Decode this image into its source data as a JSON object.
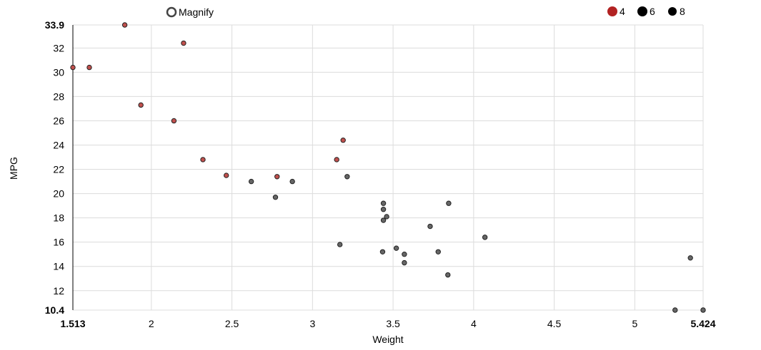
{
  "magnify": {
    "label": "Magnify",
    "checked": false
  },
  "chart_data": {
    "type": "scatter",
    "xlabel": "Weight",
    "ylabel": "MPG",
    "xlim": [
      1.513,
      5.424
    ],
    "ylim": [
      10.4,
      33.9
    ],
    "x_ticks": [
      2,
      2.5,
      3,
      3.5,
      4,
      4.5,
      5
    ],
    "x_tick_labels": [
      "2",
      "2.5",
      "3",
      "3.5",
      "4",
      "4.5",
      "5"
    ],
    "x_bound_labels": [
      "1.513",
      "5.424"
    ],
    "y_ticks": [
      12,
      14,
      16,
      18,
      20,
      22,
      24,
      26,
      28,
      30,
      32
    ],
    "y_tick_labels": [
      "12",
      "14",
      "16",
      "18",
      "20",
      "22",
      "24",
      "26",
      "28",
      "30",
      "32"
    ],
    "y_bound_labels": [
      "10.4",
      "33.9"
    ],
    "grid": true,
    "legend": {
      "placement": "top-right"
    },
    "series": [
      {
        "name": "4",
        "color": "#c0504d",
        "legend_color": "#b22222",
        "x": [
          2.32,
          3.19,
          3.15,
          2.2,
          1.615,
          1.835,
          2.465,
          1.935,
          2.14,
          1.513,
          2.78
        ],
        "y": [
          22.8,
          24.4,
          22.8,
          32.4,
          30.4,
          33.9,
          21.5,
          27.3,
          26.0,
          30.4,
          21.4
        ]
      },
      {
        "name": "6",
        "color": "#666666",
        "legend_color": "#000000",
        "x": [
          2.62,
          2.875,
          3.215,
          3.46,
          3.44,
          3.44,
          2.77
        ],
        "y": [
          21.0,
          21.0,
          21.4,
          18.1,
          19.2,
          17.8,
          19.7
        ]
      },
      {
        "name": "8",
        "color": "#666666",
        "legend_color": "#000000",
        "x": [
          3.44,
          3.57,
          4.07,
          3.73,
          3.78,
          5.25,
          5.424,
          5.345,
          3.52,
          3.435,
          3.84,
          3.845,
          3.17,
          3.57
        ],
        "y": [
          18.7,
          14.3,
          16.4,
          17.3,
          15.2,
          10.4,
          10.4,
          14.7,
          15.5,
          15.2,
          13.3,
          19.2,
          15.8,
          15.0
        ]
      }
    ]
  }
}
